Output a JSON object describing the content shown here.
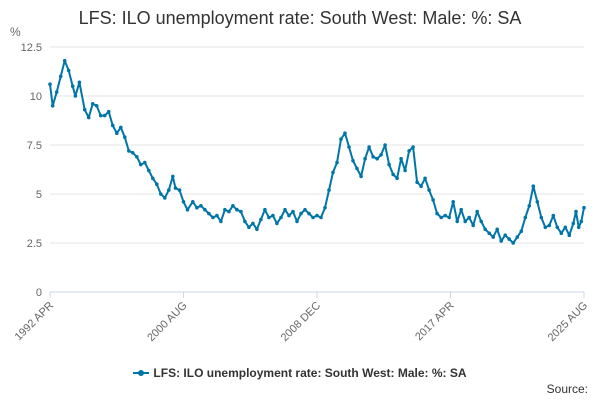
{
  "colors": {
    "series": "#0075a7",
    "grid": "#e6e6e6",
    "axis": "#ccd6eb",
    "text": "#333333",
    "tick_text": "#666666"
  },
  "chart_data": {
    "type": "line",
    "title": "LFS: ILO unemployment rate: South West: Male: %: SA",
    "ylabel": "%",
    "xlabel": "",
    "ylim": [
      0,
      12.5
    ],
    "y_ticks": [
      "0",
      "2.5",
      "5",
      "7.5",
      "10",
      "12.5"
    ],
    "x_range": [
      "1992-04",
      "2025-08"
    ],
    "x_ticks": [
      {
        "label": "1992 APR",
        "date": "1992-04"
      },
      {
        "label": "2000 AUG",
        "date": "2000-08"
      },
      {
        "label": "2008 DEC",
        "date": "2008-12"
      },
      {
        "label": "2017 APR",
        "date": "2017-04"
      },
      {
        "label": "2025 AUG",
        "date": "2025-08"
      }
    ],
    "grid": true,
    "legend_position": "bottom",
    "series": [
      {
        "name": "LFS: ILO unemployment rate: South West: Male: %: SA",
        "points": [
          [
            "1992-04",
            10.6
          ],
          [
            "1992-06",
            9.5
          ],
          [
            "1992-09",
            10.2
          ],
          [
            "1992-12",
            11.0
          ],
          [
            "1993-03",
            11.8
          ],
          [
            "1993-06",
            11.3
          ],
          [
            "1993-09",
            10.5
          ],
          [
            "1993-11",
            10.0
          ],
          [
            "1994-02",
            10.7
          ],
          [
            "1994-06",
            9.3
          ],
          [
            "1994-09",
            8.9
          ],
          [
            "1994-12",
            9.6
          ],
          [
            "1995-03",
            9.5
          ],
          [
            "1995-06",
            9.0
          ],
          [
            "1995-09",
            9.0
          ],
          [
            "1995-12",
            9.2
          ],
          [
            "1996-03",
            8.5
          ],
          [
            "1996-06",
            8.1
          ],
          [
            "1996-09",
            8.4
          ],
          [
            "1996-12",
            7.9
          ],
          [
            "1997-03",
            7.2
          ],
          [
            "1997-06",
            7.1
          ],
          [
            "1997-09",
            6.9
          ],
          [
            "1997-12",
            6.5
          ],
          [
            "1998-03",
            6.6
          ],
          [
            "1998-06",
            6.2
          ],
          [
            "1998-09",
            5.8
          ],
          [
            "1998-12",
            5.5
          ],
          [
            "1999-03",
            5.0
          ],
          [
            "1999-06",
            4.8
          ],
          [
            "1999-09",
            5.2
          ],
          [
            "1999-12",
            5.9
          ],
          [
            "2000-02",
            5.3
          ],
          [
            "2000-05",
            5.2
          ],
          [
            "2000-08",
            4.6
          ],
          [
            "2000-11",
            4.2
          ],
          [
            "2001-03",
            4.6
          ],
          [
            "2001-06",
            4.3
          ],
          [
            "2001-09",
            4.4
          ],
          [
            "2001-12",
            4.2
          ],
          [
            "2002-03",
            4.0
          ],
          [
            "2002-06",
            3.8
          ],
          [
            "2002-09",
            3.9
          ],
          [
            "2002-12",
            3.6
          ],
          [
            "2003-03",
            4.2
          ],
          [
            "2003-06",
            4.1
          ],
          [
            "2003-09",
            4.4
          ],
          [
            "2003-12",
            4.2
          ],
          [
            "2004-03",
            4.1
          ],
          [
            "2004-06",
            3.6
          ],
          [
            "2004-09",
            3.3
          ],
          [
            "2004-12",
            3.5
          ],
          [
            "2005-03",
            3.2
          ],
          [
            "2005-06",
            3.7
          ],
          [
            "2005-09",
            4.2
          ],
          [
            "2005-12",
            3.8
          ],
          [
            "2006-03",
            3.9
          ],
          [
            "2006-06",
            3.5
          ],
          [
            "2006-09",
            3.8
          ],
          [
            "2006-12",
            4.2
          ],
          [
            "2007-03",
            3.9
          ],
          [
            "2007-06",
            4.1
          ],
          [
            "2007-09",
            3.6
          ],
          [
            "2007-12",
            4.0
          ],
          [
            "2008-03",
            4.2
          ],
          [
            "2008-06",
            4.0
          ],
          [
            "2008-09",
            3.8
          ],
          [
            "2008-12",
            3.9
          ],
          [
            "2009-03",
            3.8
          ],
          [
            "2009-06",
            4.3
          ],
          [
            "2009-09",
            5.2
          ],
          [
            "2009-12",
            6.1
          ],
          [
            "2010-03",
            6.6
          ],
          [
            "2010-06",
            7.8
          ],
          [
            "2010-09",
            8.1
          ],
          [
            "2010-12",
            7.4
          ],
          [
            "2011-03",
            6.7
          ],
          [
            "2011-06",
            6.3
          ],
          [
            "2011-09",
            5.9
          ],
          [
            "2011-12",
            6.8
          ],
          [
            "2012-03",
            7.4
          ],
          [
            "2012-06",
            6.9
          ],
          [
            "2012-09",
            6.8
          ],
          [
            "2012-12",
            7.0
          ],
          [
            "2013-03",
            7.5
          ],
          [
            "2013-06",
            6.5
          ],
          [
            "2013-09",
            6.0
          ],
          [
            "2013-12",
            5.8
          ],
          [
            "2014-03",
            6.8
          ],
          [
            "2014-06",
            6.2
          ],
          [
            "2014-09",
            7.2
          ],
          [
            "2014-12",
            7.4
          ],
          [
            "2015-03",
            5.6
          ],
          [
            "2015-06",
            5.4
          ],
          [
            "2015-09",
            5.8
          ],
          [
            "2015-12",
            5.2
          ],
          [
            "2016-03",
            4.7
          ],
          [
            "2016-06",
            4.0
          ],
          [
            "2016-09",
            3.8
          ],
          [
            "2016-12",
            3.9
          ],
          [
            "2017-03",
            3.8
          ],
          [
            "2017-06",
            4.6
          ],
          [
            "2017-09",
            3.6
          ],
          [
            "2017-12",
            4.2
          ],
          [
            "2018-03",
            3.6
          ],
          [
            "2018-06",
            3.8
          ],
          [
            "2018-09",
            3.4
          ],
          [
            "2018-12",
            4.1
          ],
          [
            "2019-03",
            3.6
          ],
          [
            "2019-06",
            3.2
          ],
          [
            "2019-09",
            3.0
          ],
          [
            "2019-12",
            2.8
          ],
          [
            "2020-03",
            3.2
          ],
          [
            "2020-06",
            2.6
          ],
          [
            "2020-09",
            2.9
          ],
          [
            "2020-12",
            2.7
          ],
          [
            "2021-03",
            2.5
          ],
          [
            "2021-06",
            2.8
          ],
          [
            "2021-09",
            3.1
          ],
          [
            "2021-12",
            3.8
          ],
          [
            "2022-03",
            4.4
          ],
          [
            "2022-06",
            5.4
          ],
          [
            "2022-09",
            4.6
          ],
          [
            "2022-12",
            3.8
          ],
          [
            "2023-03",
            3.3
          ],
          [
            "2023-06",
            3.4
          ],
          [
            "2023-09",
            3.9
          ],
          [
            "2023-12",
            3.3
          ],
          [
            "2024-03",
            3.0
          ],
          [
            "2024-06",
            3.3
          ],
          [
            "2024-09",
            2.9
          ],
          [
            "2024-12",
            3.5
          ],
          [
            "2025-02",
            4.1
          ],
          [
            "2025-04",
            3.3
          ],
          [
            "2025-06",
            3.6
          ],
          [
            "2025-08",
            4.3
          ]
        ]
      }
    ]
  },
  "footer": {
    "source_label": "Source:"
  }
}
